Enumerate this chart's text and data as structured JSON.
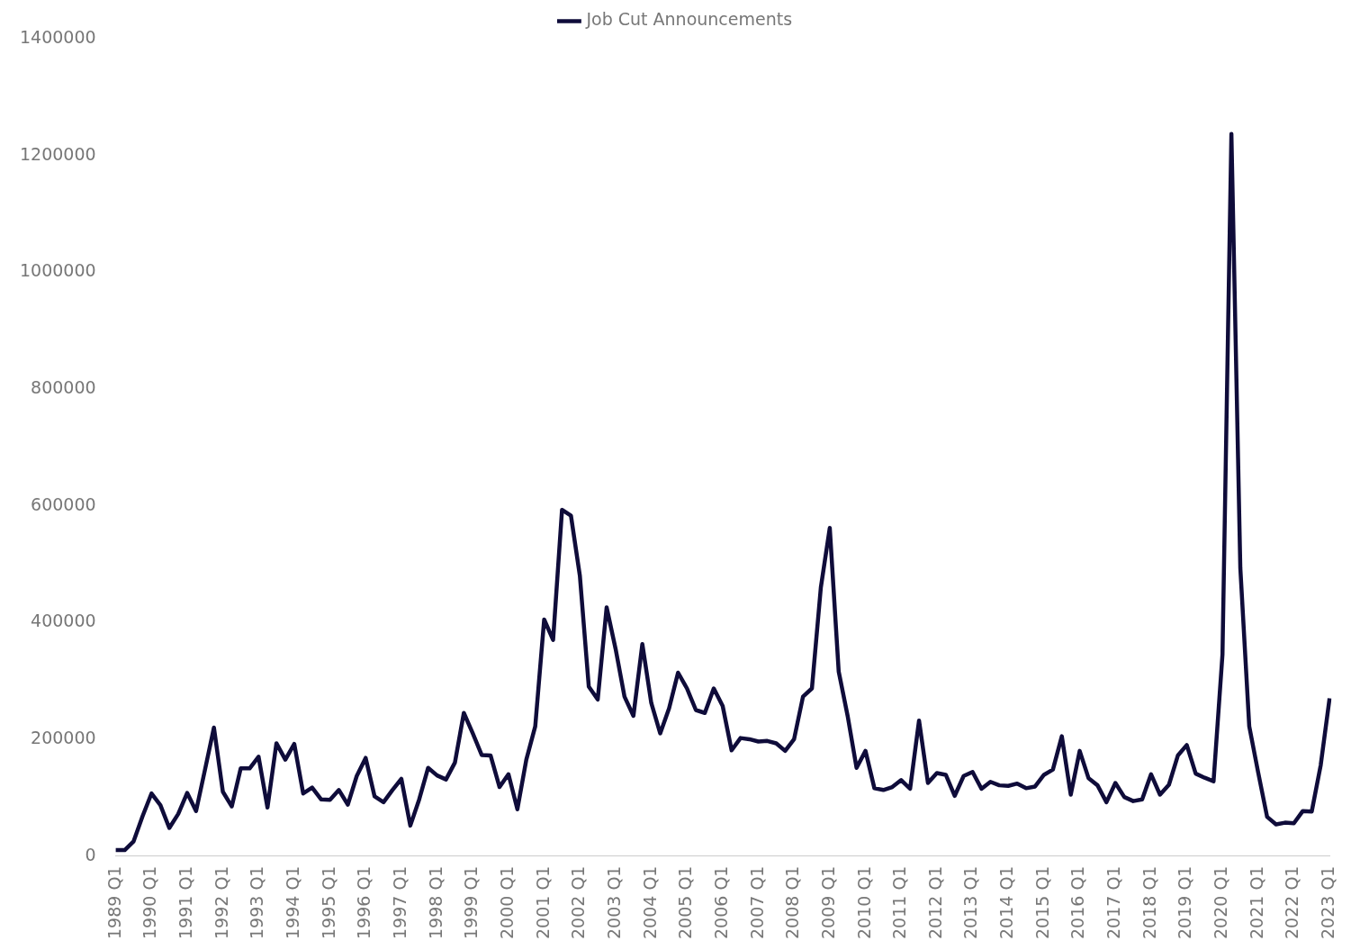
{
  "chart_data": {
    "type": "line",
    "categories": [
      "1989 Q1",
      null,
      null,
      null,
      "1990 Q1",
      null,
      null,
      null,
      "1991 Q1",
      null,
      null,
      null,
      "1992 Q1",
      null,
      null,
      null,
      "1993 Q1",
      null,
      null,
      null,
      "1994 Q1",
      null,
      null,
      null,
      "1995 Q1",
      null,
      null,
      null,
      "1996 Q1",
      null,
      null,
      null,
      "1997 Q1",
      null,
      null,
      null,
      "1998 Q1",
      null,
      null,
      null,
      "1999 Q1",
      null,
      null,
      null,
      "2000 Q1",
      null,
      null,
      null,
      "2001 Q1",
      null,
      null,
      null,
      "2002 Q1",
      null,
      null,
      null,
      "2003 Q1",
      null,
      null,
      null,
      "2004 Q1",
      null,
      null,
      null,
      "2005 Q1",
      null,
      null,
      null,
      "2006 Q1",
      null,
      null,
      null,
      "2007 Q1",
      null,
      null,
      null,
      "2008 Q1",
      null,
      null,
      null,
      "2009 Q1",
      null,
      null,
      null,
      "2010 Q1",
      null,
      null,
      null,
      "2011 Q1",
      null,
      null,
      null,
      "2012 Q1",
      null,
      null,
      null,
      "2013 Q1",
      null,
      null,
      null,
      "2014 Q1",
      null,
      null,
      null,
      "2015 Q1",
      null,
      null,
      null,
      "2016 Q1",
      null,
      null,
      null,
      "2017 Q1",
      null,
      null,
      null,
      "2018 Q1",
      null,
      null,
      null,
      "2019 Q1",
      null,
      null,
      null,
      "2020 Q1",
      null,
      null,
      null,
      "2021 Q1",
      null,
      null,
      null,
      "2022 Q1",
      null,
      null,
      null,
      "2023 Q1"
    ],
    "series": [
      {
        "name": "Job Cut Announcements",
        "color": "#0f0c3a",
        "values": [
          10000,
          10000,
          25000,
          68000,
          107000,
          87000,
          48000,
          72000,
          108000,
          77000,
          148000,
          220000,
          110000,
          85000,
          150000,
          150000,
          170000,
          83000,
          193000,
          165000,
          192000,
          107000,
          117000,
          97000,
          96000,
          113000,
          88000,
          137000,
          168000,
          102000,
          92000,
          113000,
          132000,
          52000,
          97000,
          151000,
          138000,
          131000,
          160000,
          245000,
          210000,
          173000,
          172000,
          118000,
          140000,
          80000,
          165000,
          222000,
          405000,
          370000,
          593000,
          583000,
          480000,
          290000,
          268000,
          426000,
          355000,
          273000,
          240000,
          363000,
          262000,
          210000,
          253000,
          314000,
          287000,
          250000,
          245000,
          287000,
          257000,
          181000,
          202000,
          200000,
          196000,
          197000,
          193000,
          180000,
          200000,
          273000,
          287000,
          460000,
          562000,
          316000,
          240000,
          151000,
          180000,
          116000,
          113000,
          118000,
          130000,
          115000,
          232000,
          125000,
          142000,
          139000,
          103000,
          137000,
          144000,
          115000,
          127000,
          121000,
          120000,
          124000,
          116000,
          119000,
          139000,
          148000,
          205000,
          105000,
          180000,
          133000,
          121000,
          92000,
          125000,
          101000,
          94000,
          97000,
          140000,
          105000,
          122000,
          172000,
          190000,
          141000,
          134000,
          128000,
          345000,
          1237000,
          493000,
          222000,
          143000,
          67000,
          54000,
          57000,
          56000,
          77000,
          76000,
          155000,
          270000
        ]
      }
    ],
    "ylim": [
      0,
      1400000
    ],
    "yticks": [
      0,
      200000,
      400000,
      600000,
      800000,
      1000000,
      1200000,
      1400000
    ],
    "legend": "top",
    "marker": "none",
    "line_style": "solid"
  }
}
